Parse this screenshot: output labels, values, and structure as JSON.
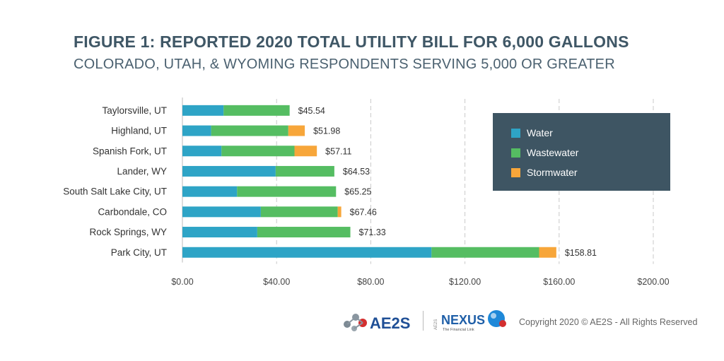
{
  "title": "FIGURE 1: REPORTED 2020 TOTAL UTILITY BILL FOR 6,000 GALLONS",
  "subtitle": "COLORADO, UTAH, & WYOMING RESPONDENTS SERVING 5,000 OR GREATER",
  "colors": {
    "water": "#2ea4c6",
    "wastewater": "#55bd62",
    "stormwater": "#f7a63a",
    "legend_bg": "#3e5563"
  },
  "chart_data": {
    "type": "bar",
    "orientation": "horizontal",
    "stacked": true,
    "categories": [
      "Taylorsville, UT",
      "Highland, UT",
      "Spanish Fork, UT",
      "Lander, WY",
      "South Salt Lake City, UT",
      "Carbondale, CO",
      "Rock Springs, WY",
      "Park City, UT"
    ],
    "series": [
      {
        "name": "Water",
        "values": [
          17.5,
          12.2,
          16.6,
          39.6,
          23.2,
          33.3,
          31.8,
          105.8
        ]
      },
      {
        "name": "Wastewater",
        "values": [
          28.04,
          32.78,
          31.0,
          24.93,
          42.05,
          32.66,
          39.53,
          45.7
        ]
      },
      {
        "name": "Stormwater",
        "values": [
          0.0,
          7.0,
          9.51,
          0.0,
          0.0,
          1.5,
          0.0,
          7.31
        ]
      }
    ],
    "totals": [
      45.54,
      51.98,
      57.11,
      64.53,
      65.25,
      67.46,
      71.33,
      158.81
    ],
    "total_labels": [
      "$45.54",
      "$51.98",
      "$57.11",
      "$64.53",
      "$65.25",
      "$67.46",
      "$71.33",
      "$158.81"
    ],
    "xlim": [
      0,
      200
    ],
    "xticks": [
      0,
      40,
      80,
      120,
      160,
      200
    ],
    "xtick_labels": [
      "$0.00",
      "$40.00",
      "$80.00",
      "$120.00",
      "$160.00",
      "$200.00"
    ],
    "grid": "vertical dashed",
    "legend_position": "right"
  },
  "legend": {
    "items": [
      "Water",
      "Wastewater",
      "Stormwater"
    ]
  },
  "footer": {
    "ae2s_logo": "AE2S",
    "nexus_logo": "NEXUS",
    "nexus_prefix": "AE2S",
    "nexus_tagline": "The Financial Link",
    "copyright": "Copyright 2020 © AE2S - All Rights Reserved"
  }
}
